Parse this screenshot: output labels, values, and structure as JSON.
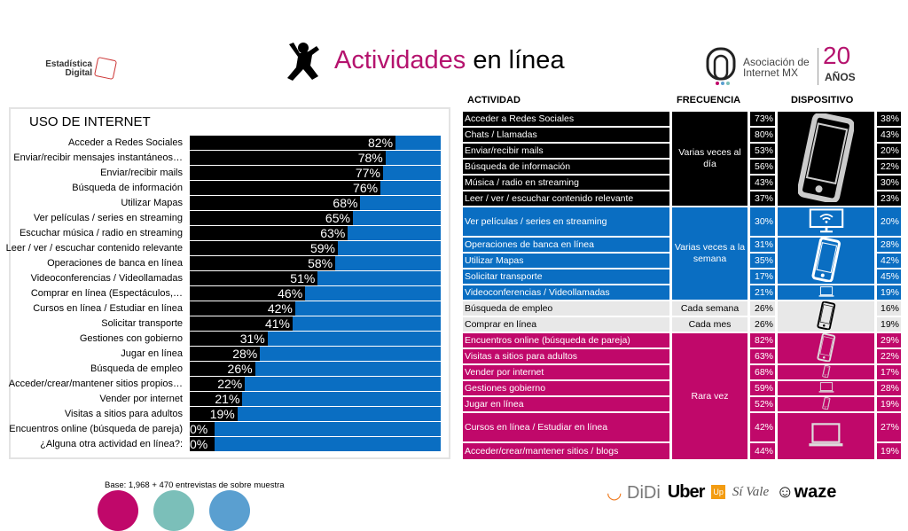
{
  "header": {
    "logo_left": "Estadística Digital",
    "title_accent": "Actividades",
    "title_rest": " en línea",
    "logo_right_line1": "Asociación de",
    "logo_right_line2": "Internet MX",
    "anniversary_number": "20",
    "anniversary_word": "AÑOS"
  },
  "colors": {
    "black": "#000000",
    "blue": "#0a6ec2",
    "pink": "#c0086a",
    "grey": "#e8e8e8",
    "title_accent": "#b5136e"
  },
  "chart_data": {
    "type": "bar",
    "orientation": "horizontal",
    "title": "USO DE INTERNET",
    "xlim": [
      0,
      100
    ],
    "unit": "%",
    "categories": [
      "Acceder a Redes Sociales",
      "Enviar/recibir mensajes instantáneos…",
      "Enviar/recibir mails",
      "Búsqueda de información",
      "Utilizar Mapas",
      "Ver películas / series en streaming",
      "Escuchar música / radio en streaming",
      "Leer / ver / escuchar contenido relevante",
      "Operaciones de banca en línea",
      "Videoconferencias / Videollamadas",
      "Comprar en línea (Espectáculos,…",
      "Cursos en línea / Estudiar en línea",
      "Solicitar transporte",
      "Gestiones con gobierno",
      "Jugar en línea",
      "Búsqueda de empleo",
      "Acceder/crear/mantener sitios propios…",
      "Vender por internet",
      "Visitas a sitios para adultos",
      "Encuentros online (búsqueda de pareja)",
      "¿Alguna otra actividad en línea?:"
    ],
    "values": [
      82,
      78,
      77,
      76,
      68,
      65,
      63,
      59,
      58,
      51,
      46,
      42,
      41,
      31,
      28,
      26,
      22,
      21,
      19,
      0,
      0
    ],
    "labels": [
      "82%",
      "78%",
      "77%",
      "76%",
      "68%",
      "65%",
      "63%",
      "59%",
      "58%",
      "51%",
      "46%",
      "42%",
      "41%",
      "31%",
      "28%",
      "26%",
      "22%",
      "21%",
      "19%",
      "0%",
      "0%"
    ]
  },
  "table": {
    "headers": {
      "activity": "ACTIVIDAD",
      "frequency": "FRECUENCIA",
      "device": "DISPOSITIVO"
    },
    "rows": [
      {
        "activity": "Acceder a Redes Sociales",
        "freq_pct": "73%",
        "device_pct": "38%",
        "group": "k"
      },
      {
        "activity": "Chats / Llamadas",
        "freq_pct": "80%",
        "device_pct": "43%",
        "group": "k"
      },
      {
        "activity": "Enviar/recibir mails",
        "freq_pct": "53%",
        "device_pct": "20%",
        "group": "k"
      },
      {
        "activity": "Búsqueda de información",
        "freq_pct": "56%",
        "device_pct": "22%",
        "group": "k"
      },
      {
        "activity": "Música / radio en streaming",
        "freq_pct": "43%",
        "device_pct": "30%",
        "group": "k"
      },
      {
        "activity": "Leer / ver / escuchar contenido relevante",
        "freq_pct": "37%",
        "device_pct": "23%",
        "group": "k"
      },
      {
        "activity": "Ver películas / series en streaming",
        "freq_pct": "30%",
        "device_pct": "20%",
        "group": "b"
      },
      {
        "activity": "Operaciones de banca en línea",
        "freq_pct": "31%",
        "device_pct": "28%",
        "group": "b"
      },
      {
        "activity": "Utilizar Mapas",
        "freq_pct": "35%",
        "device_pct": "42%",
        "group": "b"
      },
      {
        "activity": "Solicitar transporte",
        "freq_pct": "17%",
        "device_pct": "45%",
        "group": "b"
      },
      {
        "activity": "Videoconferencias / Videollamadas",
        "freq_pct": "21%",
        "device_pct": "19%",
        "group": "b"
      },
      {
        "activity": "Búsqueda de empleo",
        "freq_pct": "26%",
        "device_pct": "16%",
        "group": "g"
      },
      {
        "activity": "Comprar en línea",
        "freq_pct": "26%",
        "device_pct": "19%",
        "group": "g"
      },
      {
        "activity": "Encuentros online (búsqueda de pareja)",
        "freq_pct": "82%",
        "device_pct": "29%",
        "group": "p"
      },
      {
        "activity": "Visitas a sitios para adultos",
        "freq_pct": "63%",
        "device_pct": "22%",
        "group": "p"
      },
      {
        "activity": "Vender por internet",
        "freq_pct": "68%",
        "device_pct": "17%",
        "group": "p"
      },
      {
        "activity": "Gestiones gobierno",
        "freq_pct": "59%",
        "device_pct": "28%",
        "group": "p"
      },
      {
        "activity": "Jugar en línea",
        "freq_pct": "52%",
        "device_pct": "19%",
        "group": "p"
      },
      {
        "activity": "Cursos en línea / Estudiar en línea",
        "freq_pct": "42%",
        "device_pct": "27%",
        "group": "p"
      },
      {
        "activity": "Acceder/crear/mantener sitios / blogs",
        "freq_pct": "44%",
        "device_pct": "19%",
        "group": "p"
      }
    ],
    "frequencies": [
      {
        "label": "Varias veces al día",
        "from": 1,
        "to": 6,
        "group": "k"
      },
      {
        "label": "Varias veces a la semana",
        "from": 7,
        "to": 11,
        "group": "b"
      },
      {
        "label": "Cada semana",
        "from": 12,
        "to": 12,
        "group": "g"
      },
      {
        "label": "Cada mes",
        "from": 13,
        "to": 13,
        "group": "g"
      },
      {
        "label": "Rara vez",
        "from": 14,
        "to": 20,
        "group": "p"
      }
    ],
    "devices": [
      {
        "icon": "smartphone-icon",
        "from": 1,
        "to": 6,
        "group": "k"
      },
      {
        "icon": "smart-tv-icon",
        "from": 7,
        "to": 7,
        "group": "b"
      },
      {
        "icon": "smartphone-icon",
        "from": 8,
        "to": 10,
        "group": "b"
      },
      {
        "icon": "laptop-icon",
        "from": 11,
        "to": 11,
        "group": "b"
      },
      {
        "icon": "smartphone-icon",
        "from": 12,
        "to": 13,
        "group": "g"
      },
      {
        "icon": "smartphone-icon",
        "from": 14,
        "to": 15,
        "group": "p"
      },
      {
        "icon": "smartphone-icon",
        "from": 16,
        "to": 16,
        "group": "p"
      },
      {
        "icon": "laptop-icon",
        "from": 17,
        "to": 17,
        "group": "p"
      },
      {
        "icon": "smartphone-icon",
        "from": 18,
        "to": 18,
        "group": "p"
      },
      {
        "icon": "laptop-icon",
        "from": 19,
        "to": 20,
        "group": "p"
      }
    ]
  },
  "footer": {
    "base_note": "Base: 1,968 + 470 entrevistas de sobre muestra",
    "circle_colors": [
      "#c0086a",
      "#7bbfb9",
      "#5a9fd0"
    ],
    "brands": [
      "DiDi",
      "Uber",
      "Up",
      "Sí Vale",
      "waze"
    ]
  }
}
